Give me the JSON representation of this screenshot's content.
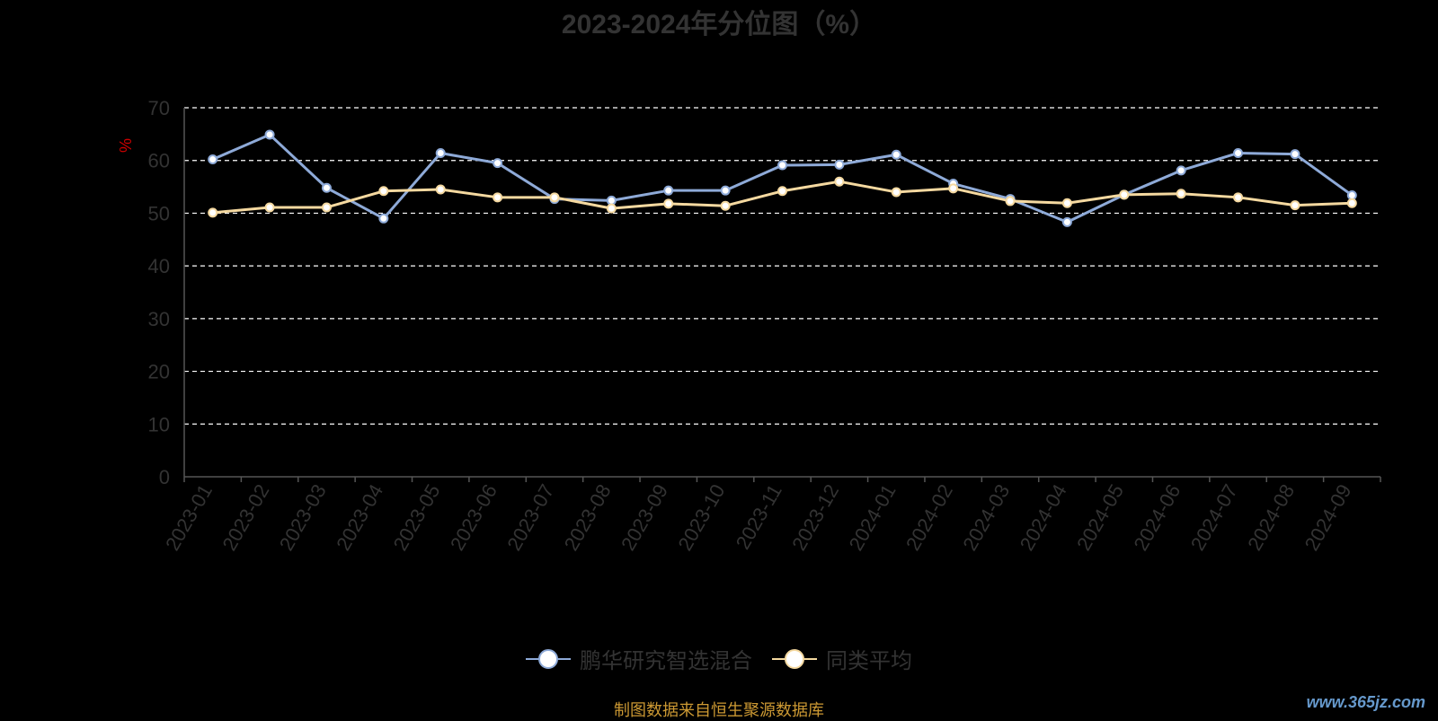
{
  "chart_data": {
    "type": "line",
    "title": "2023-2024年分位图（%）",
    "ylabel": "%",
    "ylim": [
      0,
      70
    ],
    "yticks": [
      0,
      10,
      20,
      30,
      40,
      50,
      60,
      70
    ],
    "grid": true,
    "legend_position": "bottom",
    "categories": [
      "2023-01",
      "2023-02",
      "2023-03",
      "2023-04",
      "2023-05",
      "2023-06",
      "2023-07",
      "2023-08",
      "2023-09",
      "2023-10",
      "2023-11",
      "2023-12",
      "2024-01",
      "2024-02",
      "2024-03",
      "2024-04",
      "2024-05",
      "2024-06",
      "2024-07",
      "2024-08",
      "2024-09"
    ],
    "series": [
      {
        "name": "鹏华研究智选混合",
        "color": "#8eaad8",
        "values": [
          60.2,
          64.9,
          54.8,
          49.0,
          61.4,
          59.5,
          52.7,
          52.4,
          54.3,
          54.3,
          59.1,
          59.2,
          61.1,
          55.6,
          52.7,
          48.3,
          53.5,
          58.1,
          61.4,
          61.2,
          53.4
        ]
      },
      {
        "name": "同类平均",
        "color": "#f5d9a0",
        "values": [
          50.1,
          51.1,
          51.1,
          54.2,
          54.5,
          53.0,
          53.0,
          50.9,
          51.8,
          51.4,
          54.2,
          56.0,
          54.0,
          54.7,
          52.3,
          51.9,
          53.5,
          53.7,
          53.0,
          51.5,
          51.9
        ]
      }
    ]
  },
  "colors": {
    "background": "#000000",
    "axis": "#555555",
    "text": "#333333",
    "grid": "#ffffff",
    "ylabel": "#cc0000",
    "source": "#cc9933"
  },
  "footer": {
    "source_note": "制图数据来自恒生聚源数据库",
    "watermark": "www.365jz.com"
  }
}
